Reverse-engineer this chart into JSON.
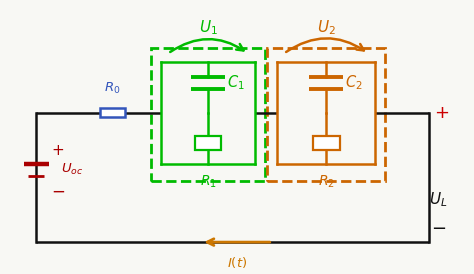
{
  "bg_color": "#f8f8f4",
  "wire_color": "#111111",
  "battery_color": "#aa0000",
  "r0_color": "#3355bb",
  "rc1_color": "#00bb00",
  "rc2_color": "#cc6600",
  "ul_plus_color": "#cc0000",
  "ul_label_color": "#111111",
  "it_color": "#cc7700",
  "figsize": [
    4.74,
    2.74
  ],
  "dpi": 100
}
